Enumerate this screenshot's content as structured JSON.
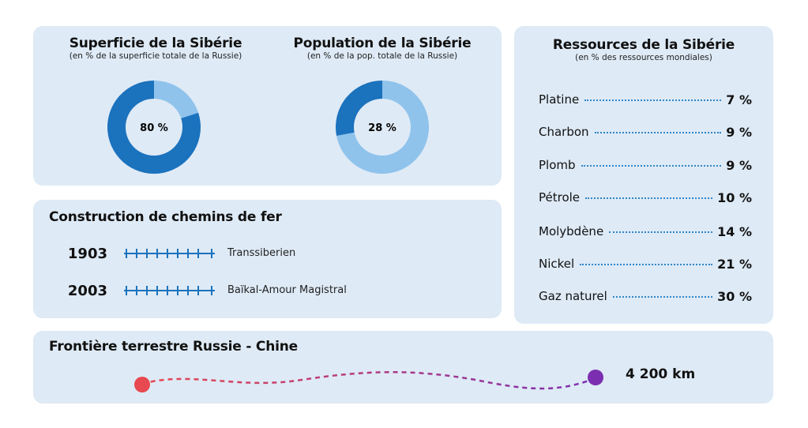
{
  "area": {
    "title": "Superficie de la Sibérie",
    "subtitle": "(en % de la superficie totale de la Russie)",
    "value_label": "80 %"
  },
  "population": {
    "title": "Population de la Sibérie",
    "subtitle": "(en % de la pop. totale de la Russie)",
    "value_label": "28 %"
  },
  "railways": {
    "title": "Construction de chemins de fer",
    "items": [
      {
        "year": "1903",
        "name": "Transsiberien"
      },
      {
        "year": "2003",
        "name": "Baïkal-Amour Magistral"
      }
    ]
  },
  "resources": {
    "title": "Ressources de la Sibérie",
    "subtitle": "(en % des ressources mondiales)",
    "items": [
      {
        "name": "Platine",
        "value": "7 %"
      },
      {
        "name": "Charbon",
        "value": "9 %"
      },
      {
        "name": "Plomb",
        "value": "9 %"
      },
      {
        "name": "Pétrole",
        "value": "10 %"
      },
      {
        "name": "Molybdène",
        "value": "14 %"
      },
      {
        "name": "Nickel",
        "value": "21 %"
      },
      {
        "name": "Gaz naturel",
        "value": "30 %"
      }
    ]
  },
  "border": {
    "title": "Frontière terrestre Russie - Chine",
    "distance": "4 200 km"
  },
  "colors": {
    "panel": "#deeaf6",
    "dark_blue": "#1b72bd",
    "light_blue": "#8fc3ec",
    "red": "#e8484f",
    "purple": "#7b2fb0",
    "rail": "#1b72bd"
  },
  "chart_data": [
    {
      "type": "pie",
      "title": "Superficie de la Sibérie",
      "slices": [
        {
          "label": "Sibérie",
          "value": 80
        },
        {
          "label": "",
          "value": 20
        }
      ]
    },
    {
      "type": "pie",
      "title": "Population de la Sibérie",
      "slices": [
        {
          "label": "Sibérie",
          "value": 28
        },
        {
          "label": "",
          "value": 72
        }
      ]
    }
  ]
}
